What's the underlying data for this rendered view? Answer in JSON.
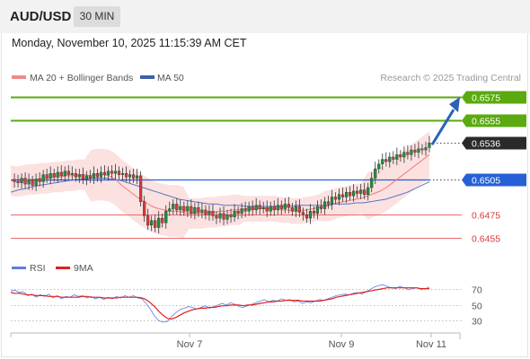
{
  "header": {
    "symbol": "AUD/USD",
    "timeframe": "30 MIN"
  },
  "datetime": "Monday, November 10, 2025 11:15:39 AM CET",
  "legend": {
    "ma20_label": "MA 20 + Bollinger Bands",
    "ma50_label": "MA 50",
    "credit": "Research © 2025 Trading Central"
  },
  "colors": {
    "resistance": "#5aaa10",
    "support": "#e86a6a",
    "current": "#2a2a2a",
    "pivot": "#2760d6",
    "candle_up": "#1f8f3a",
    "candle_down": "#d63b3b",
    "bollinger": "#fbd7d7",
    "ma20": "#f07b7b",
    "ma50": "#5677c4",
    "rsi": "#5b7fe0",
    "rsi_ma": "#e02020"
  },
  "chart_data": [
    {
      "type": "candlestick",
      "x_ticks": [
        "Nov 7",
        "Nov 9",
        "Nov 11"
      ],
      "ylim": [
        0.644,
        0.6585
      ],
      "levels": [
        {
          "label": "0.6575",
          "value": 0.6575,
          "kind": "resistance"
        },
        {
          "label": "0.6555",
          "value": 0.6555,
          "kind": "resistance"
        },
        {
          "label": "0.6536",
          "value": 0.6536,
          "kind": "current"
        },
        {
          "label": "0.6505",
          "value": 0.6505,
          "kind": "pivot"
        },
        {
          "label": "0.6475",
          "value": 0.6475,
          "kind": "support"
        },
        {
          "label": "0.6455",
          "value": 0.6455,
          "kind": "support"
        }
      ],
      "close_path": [
        0.6505,
        0.6503,
        0.6502,
        0.6506,
        0.6501,
        0.6504,
        0.65,
        0.6505,
        0.6503,
        0.6509,
        0.6506,
        0.651,
        0.6507,
        0.6511,
        0.6508,
        0.6512,
        0.6509,
        0.651,
        0.6507,
        0.6509,
        0.6505,
        0.6508,
        0.6506,
        0.651,
        0.6507,
        0.6511,
        0.6509,
        0.6512,
        0.651,
        0.6512,
        0.6509,
        0.651,
        0.6507,
        0.6509,
        0.6506,
        0.6508,
        0.6486,
        0.6474,
        0.6466,
        0.647,
        0.6464,
        0.6472,
        0.6468,
        0.6478,
        0.648,
        0.6484,
        0.6479,
        0.6482,
        0.6478,
        0.6482,
        0.6476,
        0.6481,
        0.6477,
        0.6479,
        0.6475,
        0.6478,
        0.6474,
        0.6472,
        0.6476,
        0.6471,
        0.6475,
        0.6473,
        0.6478,
        0.6476,
        0.648,
        0.6478,
        0.6482,
        0.6479,
        0.6483,
        0.648,
        0.6481,
        0.6478,
        0.6482,
        0.6479,
        0.6483,
        0.648,
        0.6484,
        0.6481,
        0.6478,
        0.6482,
        0.6477,
        0.6475,
        0.6472,
        0.6478,
        0.6476,
        0.6482,
        0.648,
        0.6486,
        0.6484,
        0.649,
        0.6488,
        0.6492,
        0.649,
        0.6494,
        0.6491,
        0.6495,
        0.6493,
        0.6496,
        0.6492,
        0.6498,
        0.6506,
        0.6514,
        0.6518,
        0.6522,
        0.652,
        0.6524,
        0.6522,
        0.6526,
        0.6524,
        0.6528,
        0.6526,
        0.653,
        0.6528,
        0.6531,
        0.653,
        0.6532,
        0.6536
      ],
      "ma20_path": [
        0.6504,
        0.6503,
        0.6504,
        0.6505,
        0.6505,
        0.6506,
        0.6506,
        0.6507,
        0.6507,
        0.6508,
        0.6508,
        0.6509,
        0.6509,
        0.6508,
        0.6509,
        0.6509,
        0.6508,
        0.6505,
        0.65,
        0.6496,
        0.6492,
        0.6488,
        0.6485,
        0.6482,
        0.648,
        0.6479,
        0.6478,
        0.6478,
        0.6477,
        0.6476,
        0.6476,
        0.6476,
        0.6477,
        0.6477,
        0.6478,
        0.6478,
        0.6479,
        0.6479,
        0.648,
        0.648,
        0.648,
        0.648,
        0.648,
        0.648,
        0.6479,
        0.6479,
        0.6478,
        0.6478,
        0.6479,
        0.648,
        0.6481,
        0.6482,
        0.6483,
        0.6485,
        0.6486,
        0.6487,
        0.6488,
        0.6489,
        0.6491,
        0.6493,
        0.6495,
        0.6498,
        0.6502,
        0.6506,
        0.651,
        0.6514,
        0.6518,
        0.6522,
        0.6526
      ],
      "ma50_path": [
        0.6494,
        0.6496,
        0.6497,
        0.6499,
        0.65,
        0.6501,
        0.6502,
        0.6503,
        0.6504,
        0.6505,
        0.6505,
        0.6506,
        0.6506,
        0.6506,
        0.6505,
        0.6504,
        0.6502,
        0.65,
        0.6498,
        0.6496,
        0.6494,
        0.6492,
        0.649,
        0.6488,
        0.6487,
        0.6486,
        0.6485,
        0.6484,
        0.6484,
        0.6483,
        0.6483,
        0.6483,
        0.6482,
        0.6482,
        0.6482,
        0.6482,
        0.6482,
        0.6482,
        0.6482,
        0.6483,
        0.6483,
        0.6483,
        0.6483,
        0.6483,
        0.6484,
        0.6484,
        0.6484,
        0.6485,
        0.6485,
        0.6486,
        0.6487,
        0.6488,
        0.649,
        0.6492,
        0.6494,
        0.6497,
        0.65,
        0.6503
      ],
      "forecast_arrow": {
        "from": 0.6536,
        "to": 0.6575
      }
    },
    {
      "type": "line",
      "title": "",
      "legend": [
        "RSI",
        "9MA"
      ],
      "y_ticks": [
        70,
        50,
        30
      ],
      "ylim": [
        20,
        82
      ],
      "series": [
        {
          "name": "RSI",
          "values": [
            68,
            69,
            66,
            67,
            62,
            64,
            60,
            63,
            61,
            64,
            59,
            62,
            58,
            61,
            60,
            63,
            61,
            62,
            59,
            61,
            58,
            60,
            57,
            60,
            58,
            61,
            59,
            62,
            60,
            62,
            59,
            58,
            52,
            45,
            36,
            30,
            28,
            29,
            35,
            40,
            44,
            46,
            48,
            47,
            45,
            47,
            49,
            46,
            48,
            50,
            52,
            50,
            53,
            51,
            48,
            47,
            49,
            51,
            53,
            55,
            57,
            54,
            56,
            55,
            58,
            56,
            57,
            54,
            55,
            52,
            54,
            53,
            55,
            57,
            56,
            58,
            60,
            62,
            63,
            64,
            63,
            65,
            66,
            64,
            67,
            70,
            73,
            75,
            76,
            74,
            72,
            71,
            74,
            72,
            70,
            71,
            72,
            70,
            71,
            73
          ]
        },
        {
          "name": "9MA",
          "values": [
            66,
            65,
            65,
            64,
            63,
            63,
            62,
            62,
            62,
            61,
            61,
            61,
            60,
            60,
            60,
            60,
            60,
            61,
            61,
            60,
            60,
            60,
            59,
            59,
            59,
            59,
            60,
            60,
            60,
            60,
            60,
            59,
            57,
            53,
            48,
            42,
            37,
            33,
            32,
            34,
            37,
            40,
            42,
            44,
            45,
            46,
            46,
            47,
            47,
            48,
            49,
            49,
            50,
            50,
            50,
            49,
            50,
            50,
            51,
            52,
            53,
            54,
            54,
            55,
            55,
            56,
            56,
            56,
            56,
            55,
            55,
            55,
            55,
            55,
            56,
            57,
            58,
            60,
            61,
            62,
            63,
            64,
            65,
            66,
            67,
            68,
            69,
            70,
            71,
            72,
            72,
            72,
            72,
            72,
            72,
            72,
            72,
            71,
            71,
            71
          ]
        }
      ]
    }
  ]
}
